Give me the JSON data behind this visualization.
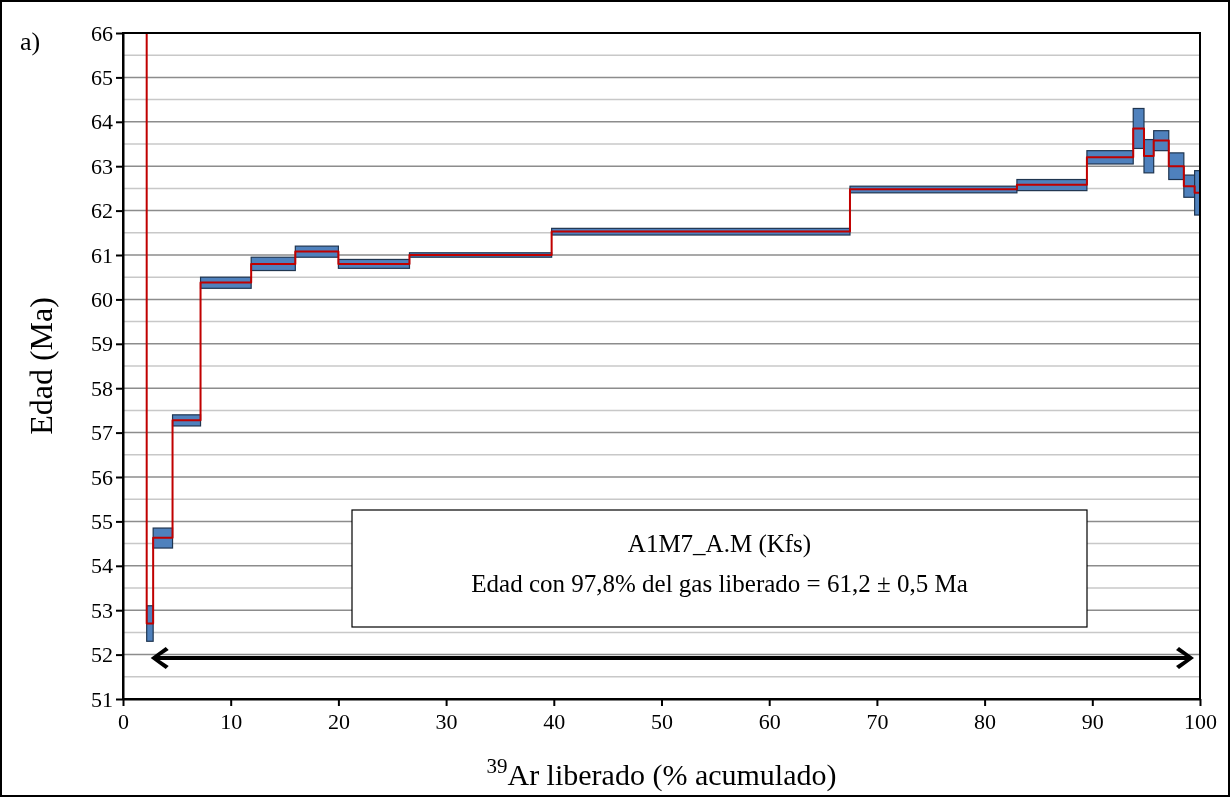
{
  "chart_data": {
    "type": "step",
    "xlabel": "$^{39}$Ar liberado (% acumulado)",
    "ylabel": "Edad (Ma)",
    "xlim": [
      0,
      100
    ],
    "xticks": [
      0,
      10,
      20,
      30,
      40,
      50,
      60,
      70,
      80,
      90,
      100
    ],
    "ylim": [
      51,
      66
    ],
    "yticks": [
      51,
      52,
      53,
      54,
      55,
      56,
      57,
      58,
      59,
      60,
      61,
      62,
      63,
      64,
      65,
      66
    ],
    "grid": "y",
    "annotations": [
      "a)",
      "A1M7_A.M (Kfs)",
      "Edad con 97,8% del gas liberado = 61,2 ± 0,5 Ma"
    ],
    "series": [
      {
        "color": "#c00000",
        "x": [
          2.2,
          2.2,
          2.8,
          4.6,
          7.2,
          11.9,
          16.0,
          20.0,
          26.6,
          39.8,
          67.5,
          83.0,
          89.5,
          93.8,
          94.8,
          95.7,
          97.1,
          98.5,
          99.5,
          100
        ],
        "values": [
          66,
          52.7,
          54.63,
          57.28,
          60.38,
          60.8,
          61.08,
          60.8,
          61.0,
          61.53,
          62.48,
          62.58,
          63.2,
          63.85,
          63.23,
          63.58,
          63.0,
          62.55,
          62.4,
          62.4
        ],
        "lower": [
          null,
          52.3,
          54.4,
          57.15,
          60.25,
          60.65,
          60.95,
          60.7,
          60.95,
          61.45,
          62.4,
          62.45,
          63.05,
          63.4,
          62.85,
          63.35,
          62.7,
          62.3,
          61.9,
          null
        ],
        "upper": [
          null,
          53.1,
          54.85,
          57.4,
          60.5,
          60.95,
          61.2,
          60.9,
          61.05,
          61.6,
          62.55,
          62.7,
          63.35,
          64.3,
          63.6,
          63.8,
          63.3,
          62.8,
          62.9,
          null
        ]
      }
    ]
  }
}
